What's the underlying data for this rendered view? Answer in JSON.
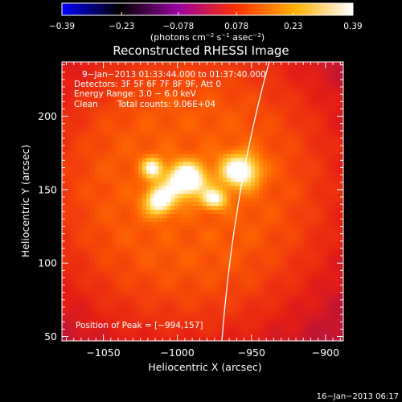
{
  "chart_data": {
    "type": "heatmap",
    "title": "Reconstructed RHESSI Image",
    "xlabel": "Heliocentric X (arcsec)",
    "ylabel": "Heliocentric Y (arcsec)",
    "xlim": [
      -1078,
      -888
    ],
    "ylim": [
      47,
      237
    ],
    "x_ticks": [
      -1050,
      -1000,
      -950,
      -900
    ],
    "x_tick_labels": [
      "−1050",
      "−1000",
      "−950",
      "−900"
    ],
    "y_ticks": [
      50,
      100,
      150,
      200
    ],
    "y_tick_labels": [
      "50",
      "100",
      "150",
      "200"
    ],
    "colorbar": {
      "range": [
        -0.39,
        0.39
      ],
      "ticks": [
        -0.39,
        -0.23,
        -0.078,
        0.078,
        0.23,
        0.39
      ],
      "tick_labels": [
        "−0.39",
        "−0.23",
        "−0.078",
        "0.078",
        "0.23",
        "0.39"
      ],
      "unit_main": "(photons cm",
      "unit_exp1": "−2",
      "unit_mid": " s",
      "unit_exp2": "−1",
      "unit_tail": " asec",
      "unit_exp3": "−2",
      "unit_close": ")",
      "colors": [
        "#0000ff",
        "#000000",
        "#9a00a0",
        "#ff3000",
        "#ffb000",
        "#ffffff"
      ]
    },
    "annotations": {
      "time_range": "9−Jan−2013 01:33:44.000 to 01:37:40.000",
      "detectors": "Detectors: 3F 5F 6F 7F 8F 9F, Att 0",
      "energy": "Energy Range: 3.0 − 6.0 keV",
      "method": "Clean",
      "counts": "Total counts: 9.06E+04",
      "peak": "Position of Peak = [−994,157]"
    },
    "peak_position": [
      -994,
      157
    ],
    "sources": [
      {
        "x": -994,
        "y": 157,
        "sigma_x": 9,
        "sigma_y": 8,
        "amp": 0.39
      },
      {
        "x": -1012,
        "y": 143,
        "sigma_x": 7,
        "sigma_y": 7,
        "amp": 0.3
      },
      {
        "x": -1017,
        "y": 165,
        "sigma_x": 5,
        "sigma_y": 5,
        "amp": 0.25
      },
      {
        "x": -958,
        "y": 163,
        "sigma_x": 9,
        "sigma_y": 8,
        "amp": 0.32
      },
      {
        "x": -975,
        "y": 144,
        "sigma_x": 6,
        "sigma_y": 5,
        "amp": 0.25
      }
    ],
    "background_level": 0.1,
    "limb": {
      "points": [
        [
          -938,
          237
        ],
        [
          -962,
          150
        ],
        [
          -970,
          47
        ]
      ]
    }
  },
  "footer": {
    "date": "16−Jan−2013 06:17"
  }
}
